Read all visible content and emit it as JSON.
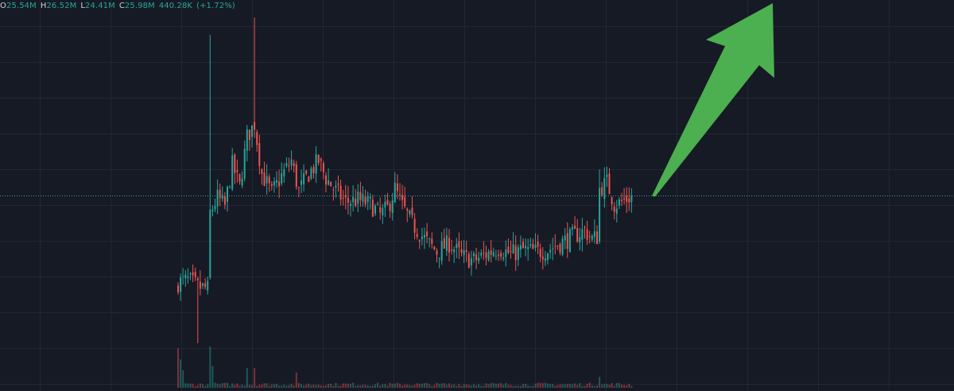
{
  "legend": {
    "open_label": "O",
    "open_value": "25.54M",
    "high_label": "H",
    "high_value": "26.52M",
    "low_label": "L",
    "low_value": "24.41M",
    "close_label": "C",
    "close_value": "25.98M",
    "change_value": "440.28K",
    "change_pct": "(+1.72%)"
  },
  "colors": {
    "background": "#161a25",
    "grid": "#232733",
    "up": "#26a69a",
    "down": "#ef5350",
    "price_line": "#26a69a",
    "arrow": "#4caf50",
    "text": "#d1d4dc"
  },
  "icons": {
    "annotation": "up-trend-arrow-icon"
  },
  "chart_data": {
    "type": "candlestick",
    "title": "",
    "xlabel": "",
    "ylabel": "",
    "ylim": [
      17.0,
      35.0
    ],
    "grid": true,
    "legend_position": "top-left",
    "last_close": 25.98,
    "annotations": [
      "upward trend arrow"
    ],
    "anchors": [
      [
        0,
        22.0
      ],
      [
        4,
        22.1
      ],
      [
        8,
        21.8
      ],
      [
        12,
        21.7
      ],
      [
        13,
        25.2
      ],
      [
        16,
        25.9
      ],
      [
        19,
        25.5
      ],
      [
        22,
        27.4
      ],
      [
        25,
        26.4
      ],
      [
        28,
        28.7
      ],
      [
        31,
        29.3
      ],
      [
        34,
        27.0
      ],
      [
        38,
        26.1
      ],
      [
        42,
        26.9
      ],
      [
        46,
        27.6
      ],
      [
        49,
        26.2
      ],
      [
        53,
        27.0
      ],
      [
        57,
        27.6
      ],
      [
        60,
        26.8
      ],
      [
        64,
        26.2
      ],
      [
        68,
        25.7
      ],
      [
        73,
        25.8
      ],
      [
        78,
        25.6
      ],
      [
        82,
        25.1
      ],
      [
        85,
        25.4
      ],
      [
        88,
        26.3
      ],
      [
        91,
        25.5
      ],
      [
        95,
        24.7
      ],
      [
        100,
        24.0
      ],
      [
        105,
        23.4
      ],
      [
        110,
        23.8
      ],
      [
        115,
        23.2
      ],
      [
        120,
        23.0
      ],
      [
        125,
        23.3
      ],
      [
        130,
        23.6
      ],
      [
        135,
        23.3
      ],
      [
        140,
        23.5
      ],
      [
        145,
        23.4
      ],
      [
        150,
        23.5
      ],
      [
        155,
        23.8
      ],
      [
        160,
        24.1
      ],
      [
        165,
        24.4
      ],
      [
        168,
        24.0
      ],
      [
        170,
        24.1
      ],
      [
        171,
        26.3
      ],
      [
        174,
        26.6
      ],
      [
        177,
        25.6
      ],
      [
        180,
        25.7
      ],
      [
        184,
        25.98
      ]
    ],
    "volume_max": 1.0
  }
}
